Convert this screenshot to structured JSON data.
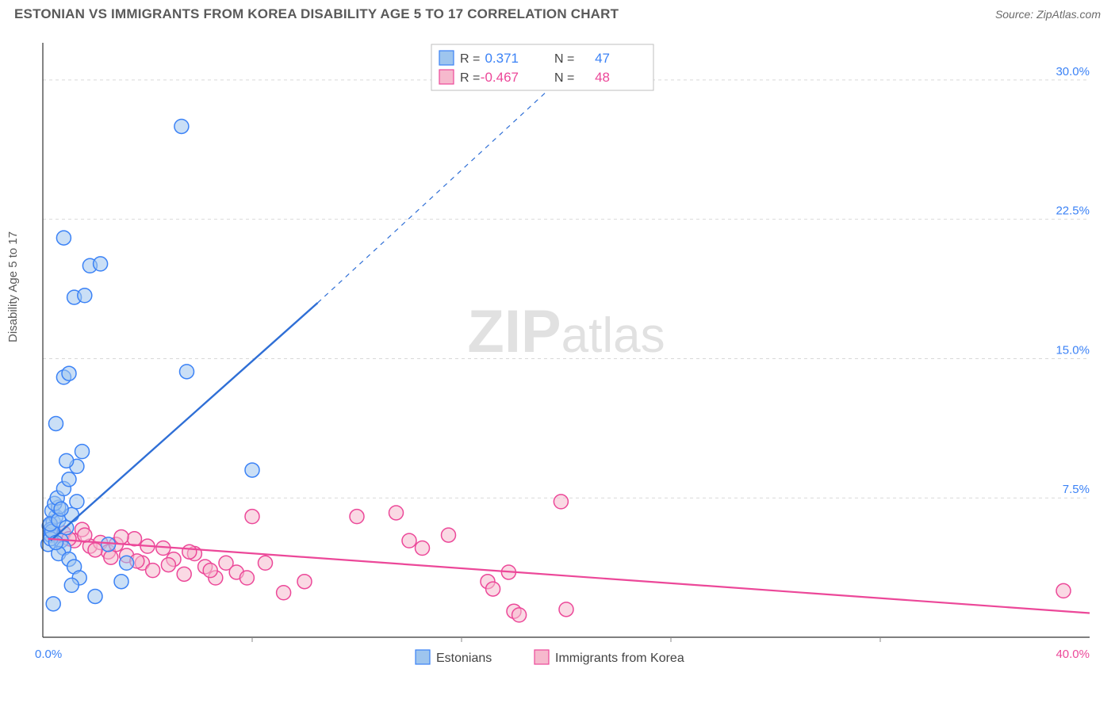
{
  "title": "ESTONIAN VS IMMIGRANTS FROM KOREA DISABILITY AGE 5 TO 17 CORRELATION CHART",
  "source": "Source: ZipAtlas.com",
  "ylabel": "Disability Age 5 to 17",
  "watermark_bold": "ZIP",
  "watermark_light": "atlas",
  "chart": {
    "type": "scatter",
    "xlim": [
      0,
      40
    ],
    "ylim": [
      0,
      32
    ],
    "xtick_minor": [
      8,
      16,
      24,
      32
    ],
    "ytick_values": [
      7.5,
      15.0,
      22.5,
      30.0
    ],
    "ytick_labels": [
      "7.5%",
      "15.0%",
      "22.5%",
      "30.0%"
    ],
    "x_origin_label": "0.0%",
    "x_end_label": "40.0%",
    "background_color": "#ffffff",
    "grid_color": "#d9d9d9",
    "axis_color": "#333333",
    "point_radius": 9,
    "series": {
      "estonians": {
        "label": "Estonians",
        "color_fill": "#9ec5ee",
        "color_stroke": "#3b82f6",
        "R": "0.371",
        "N": "47",
        "trend": {
          "x1": 0.3,
          "y1": 5.2,
          "x2_solid": 10.5,
          "y2_solid": 18.0,
          "x2_dash": 20.5,
          "y2_dash": 31.0
        },
        "points": [
          [
            0.2,
            5.0
          ],
          [
            0.3,
            5.5
          ],
          [
            0.25,
            6.0
          ],
          [
            0.4,
            6.2
          ],
          [
            0.5,
            6.5
          ],
          [
            0.35,
            6.8
          ],
          [
            0.6,
            7.0
          ],
          [
            0.45,
            7.2
          ],
          [
            0.55,
            7.5
          ],
          [
            0.3,
            5.8
          ],
          [
            0.7,
            5.2
          ],
          [
            0.8,
            4.8
          ],
          [
            0.6,
            4.5
          ],
          [
            1.0,
            4.2
          ],
          [
            1.2,
            3.8
          ],
          [
            1.4,
            3.2
          ],
          [
            1.1,
            2.8
          ],
          [
            2.0,
            2.2
          ],
          [
            2.5,
            5.0
          ],
          [
            3.0,
            3.0
          ],
          [
            3.2,
            4.0
          ],
          [
            0.8,
            8.0
          ],
          [
            1.0,
            8.5
          ],
          [
            1.3,
            9.2
          ],
          [
            0.9,
            9.5
          ],
          [
            1.5,
            10.0
          ],
          [
            0.5,
            11.5
          ],
          [
            0.8,
            14.0
          ],
          [
            1.0,
            14.2
          ],
          [
            5.5,
            14.3
          ],
          [
            8.0,
            9.0
          ],
          [
            1.2,
            18.3
          ],
          [
            1.6,
            18.4
          ],
          [
            1.8,
            20.0
          ],
          [
            2.2,
            20.1
          ],
          [
            0.8,
            21.5
          ],
          [
            5.3,
            27.5
          ],
          [
            0.4,
            1.8
          ],
          [
            0.3,
            5.3
          ],
          [
            0.35,
            5.7
          ],
          [
            0.28,
            6.1
          ],
          [
            0.5,
            5.1
          ],
          [
            0.6,
            6.3
          ],
          [
            0.9,
            5.9
          ],
          [
            1.1,
            6.6
          ],
          [
            1.3,
            7.3
          ],
          [
            0.7,
            6.9
          ]
        ]
      },
      "korea": {
        "label": "Immigrants from Korea",
        "color_fill": "#f6b9cd",
        "color_stroke": "#ec4899",
        "R": "-0.467",
        "N": "48",
        "trend": {
          "x1": 0.2,
          "y1": 5.3,
          "x2": 40.0,
          "y2": 1.3
        },
        "points": [
          [
            0.5,
            5.5
          ],
          [
            0.8,
            5.6
          ],
          [
            1.2,
            5.2
          ],
          [
            1.5,
            5.8
          ],
          [
            1.8,
            4.9
          ],
          [
            2.2,
            5.1
          ],
          [
            2.5,
            4.6
          ],
          [
            2.8,
            5.0
          ],
          [
            3.2,
            4.4
          ],
          [
            3.5,
            5.3
          ],
          [
            3.8,
            4.0
          ],
          [
            4.2,
            3.6
          ],
          [
            4.6,
            4.8
          ],
          [
            5.0,
            4.2
          ],
          [
            5.4,
            3.4
          ],
          [
            5.8,
            4.5
          ],
          [
            6.2,
            3.8
          ],
          [
            6.6,
            3.2
          ],
          [
            7.0,
            4.0
          ],
          [
            7.4,
            3.5
          ],
          [
            8.0,
            6.5
          ],
          [
            8.5,
            4.0
          ],
          [
            9.2,
            2.4
          ],
          [
            10.0,
            3.0
          ],
          [
            12.0,
            6.5
          ],
          [
            13.5,
            6.7
          ],
          [
            14.0,
            5.2
          ],
          [
            14.5,
            4.8
          ],
          [
            15.5,
            5.5
          ],
          [
            17.0,
            3.0
          ],
          [
            17.2,
            2.6
          ],
          [
            18.0,
            1.4
          ],
          [
            18.2,
            1.2
          ],
          [
            17.8,
            3.5
          ],
          [
            19.8,
            7.3
          ],
          [
            20.0,
            1.5
          ],
          [
            39.0,
            2.5
          ],
          [
            1.0,
            5.3
          ],
          [
            1.6,
            5.5
          ],
          [
            2.0,
            4.7
          ],
          [
            2.6,
            4.3
          ],
          [
            3.0,
            5.4
          ],
          [
            3.6,
            4.1
          ],
          [
            4.0,
            4.9
          ],
          [
            4.8,
            3.9
          ],
          [
            5.6,
            4.6
          ],
          [
            6.4,
            3.6
          ],
          [
            7.8,
            3.2
          ]
        ]
      }
    }
  },
  "legend_top": {
    "r_label": "R =",
    "n_label": "N ="
  }
}
